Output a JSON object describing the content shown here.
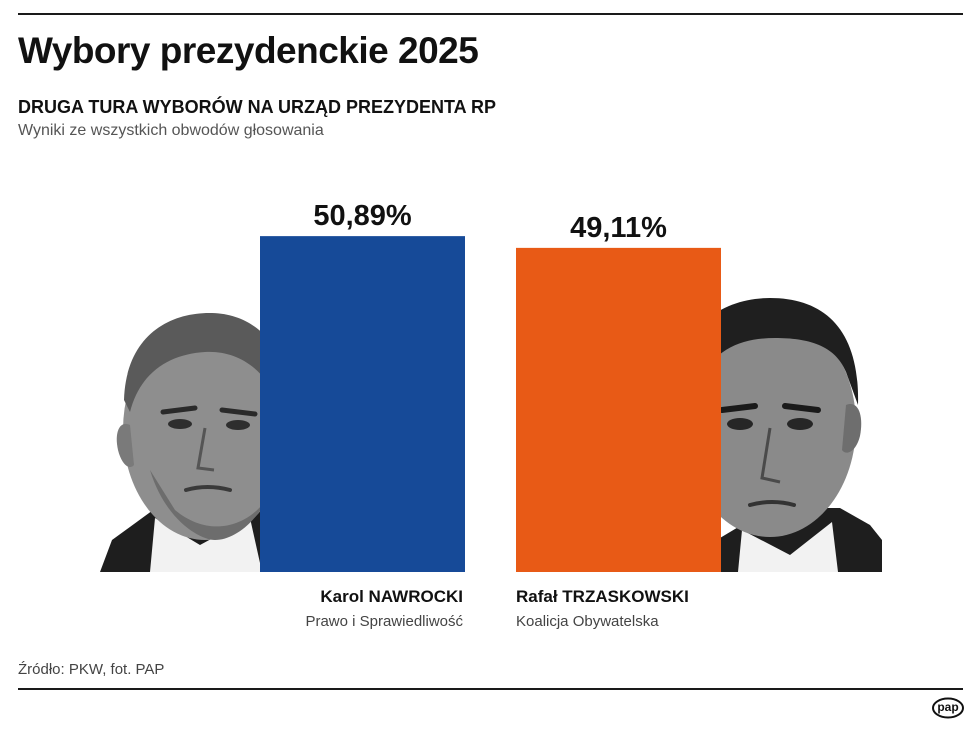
{
  "header": {
    "title": "Wybory prezydenckie 2025",
    "subtitle": "DRUGA TURA WYBORÓW NA URZĄD PREZYDENTA RP",
    "caption": "Wyniki ze wszystkich obwodów głosowania"
  },
  "chart_data": {
    "type": "bar",
    "categories": [
      "Karol NAWROCKI",
      "Rafał TRZASKOWSKI"
    ],
    "values": [
      50.89,
      49.11
    ],
    "value_labels": [
      "50,89%",
      "49,11%"
    ],
    "parties": [
      "Prawo i Sprawiedliwość",
      "Koalicja Obywatelska"
    ],
    "colors": [
      "#164a98",
      "#e85a16"
    ],
    "photos": [
      "portrait-photo",
      "portrait-photo"
    ],
    "title": "",
    "xlabel": "",
    "ylabel": "",
    "grid": false
  },
  "footer": {
    "source": "Źródło: PKW, fot. PAP",
    "logo": "pap"
  }
}
